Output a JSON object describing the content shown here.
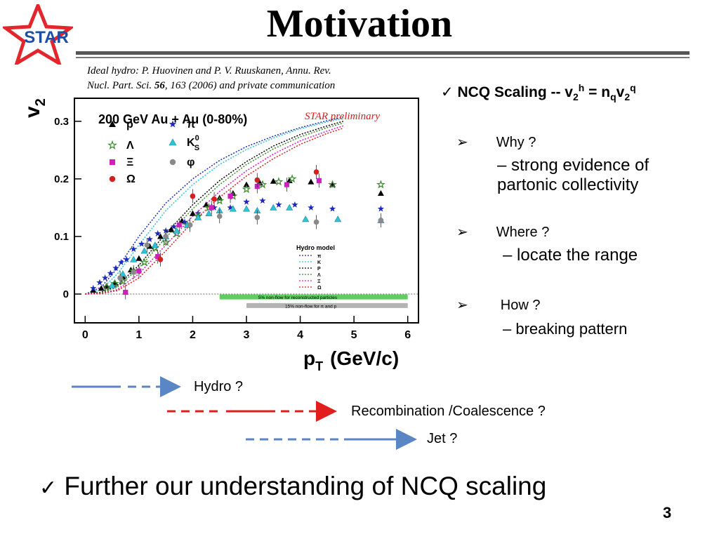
{
  "slide": {
    "title": "Motivation",
    "logo_text": "STAR",
    "citation_line1": "Ideal hydro: P. Huovinen and P. V. Ruuskanen, Annu. Rev.",
    "citation_line2_pre": "Nucl. Part. Sci. ",
    "citation_line2_vol": "56",
    "citation_line2_post": ", 163 (2006) and private communication",
    "page_number": "3",
    "check_mark": "✓",
    "bullet_arrow": "➢"
  },
  "ncq": {
    "text_pre": "NCQ Scaling -- v",
    "sub1": "2",
    "sup1": "h",
    "text_mid": " = n",
    "sub2": "q",
    "text_v": "v",
    "sub3": "2",
    "sup3": "q"
  },
  "questions": [
    {
      "q": "Why ?",
      "a": "– strong evidence of partonic collectivity"
    },
    {
      "q": "Where ?",
      "a": "– locate the range"
    },
    {
      "q": "How ?",
      "a": "– breaking pattern"
    }
  ],
  "arrows": [
    {
      "label": "Hydro ?"
    },
    {
      "label": "Recombination /Coalescence ?"
    },
    {
      "label": "Jet ?"
    }
  ],
  "further": "Further our understanding of NCQ scaling",
  "colors": {
    "blue_arrow": "#5b86c5",
    "red_arrow": "#e01e1e",
    "star_red": "#e3262c",
    "star_blue": "#1d4ea6"
  },
  "chart_data": {
    "type": "scatter",
    "title": "200 GeV Au + Au  (0-80%)",
    "annotation": "STAR preliminary",
    "xlabel": "p",
    "xlabel_sub": "T",
    "xlabel_unit": "(GeV/c)",
    "ylabel": "v",
    "ylabel_sub": "2",
    "xlim": [
      -0.2,
      6.2
    ],
    "ylim": [
      -0.05,
      0.34
    ],
    "xticks": [
      0,
      1,
      2,
      3,
      4,
      5,
      6
    ],
    "yticks": [
      0,
      0.1,
      0.2,
      0.3
    ],
    "ytick_labels": [
      "0",
      "0.1",
      "0.2",
      "0.3"
    ],
    "hydro_legend_title": "Hydro model",
    "nonflow_bands": [
      {
        "label": "5% non-flow for reconstructed particles",
        "x0": 2.5,
        "x1": 6.0,
        "y": -0.005,
        "color": "#5ccf5c"
      },
      {
        "label": "15% non-flow for π and p",
        "x0": 3.0,
        "x1": 6.0,
        "y": -0.02,
        "color": "#b3b3b3"
      }
    ],
    "series": [
      {
        "name": "p",
        "marker": "triangle",
        "color": "#000000",
        "x": [
          0.15,
          0.3,
          0.4,
          0.55,
          0.7,
          0.85,
          1.0,
          1.2,
          1.4,
          1.6,
          1.8,
          2.0,
          2.25,
          2.5,
          2.75,
          3.0,
          3.25,
          3.5,
          3.8,
          4.2,
          4.6,
          5.5
        ],
        "y": [
          0.007,
          0.01,
          0.014,
          0.02,
          0.03,
          0.042,
          0.062,
          0.083,
          0.1,
          0.112,
          0.127,
          0.14,
          0.155,
          0.167,
          0.175,
          0.19,
          0.193,
          0.196,
          0.197,
          0.195,
          0.19,
          0.175
        ]
      },
      {
        "name": "π",
        "marker": "star",
        "color": "#1d2bb8",
        "x": [
          0.15,
          0.27,
          0.37,
          0.47,
          0.57,
          0.67,
          0.77,
          0.9,
          1.05,
          1.2,
          1.35,
          1.5,
          1.65,
          1.85,
          2.1,
          2.4,
          2.7,
          3.0,
          3.3,
          3.6,
          3.9,
          4.2,
          4.6,
          5.5
        ],
        "y": [
          0.01,
          0.02,
          0.028,
          0.036,
          0.045,
          0.055,
          0.06,
          0.078,
          0.087,
          0.095,
          0.105,
          0.11,
          0.117,
          0.125,
          0.14,
          0.15,
          0.15,
          0.16,
          0.162,
          0.155,
          0.155,
          0.15,
          0.148,
          0.148
        ]
      },
      {
        "name": "Λ",
        "marker": "asterisk",
        "color": "#3a8a2e",
        "x": [
          0.4,
          0.55,
          0.7,
          0.9,
          1.1,
          1.3,
          1.5,
          1.7,
          1.9,
          2.1,
          2.3,
          2.5,
          2.75,
          3.0,
          3.3,
          3.6,
          3.85,
          4.6,
          5.5
        ],
        "y": [
          0.012,
          0.018,
          0.022,
          0.04,
          0.055,
          0.08,
          0.09,
          0.105,
          0.12,
          0.135,
          0.15,
          0.162,
          0.17,
          0.182,
          0.19,
          0.195,
          0.2,
          0.19,
          0.19
        ]
      },
      {
        "name": "K",
        "name_sup": "0",
        "name_sub": "S",
        "marker": "triangle",
        "color": "#2ec3d6",
        "x": [
          0.5,
          0.7,
          0.9,
          1.1,
          1.3,
          1.5,
          1.7,
          1.9,
          2.1,
          2.3,
          2.5,
          2.75,
          3.0,
          3.2,
          3.5,
          3.8,
          4.1,
          4.7,
          5.5
        ],
        "y": [
          0.015,
          0.035,
          0.06,
          0.075,
          0.085,
          0.1,
          0.11,
          0.12,
          0.133,
          0.14,
          0.145,
          0.148,
          0.148,
          0.145,
          0.15,
          0.15,
          0.13,
          0.13,
          0.128
        ]
      },
      {
        "name": "Ξ",
        "marker": "square",
        "color": "#d11fbf",
        "x": [
          0.75,
          1.0,
          1.35,
          1.75,
          2.35,
          2.7,
          3.2,
          3.75,
          4.35
        ],
        "y": [
          0.003,
          0.04,
          0.065,
          0.12,
          0.15,
          0.17,
          0.187,
          0.19,
          0.197
        ]
      },
      {
        "name": "Ω",
        "marker": "circle",
        "color": "#d42020",
        "x": [
          1.4,
          2.0,
          2.4,
          3.2,
          4.3
        ],
        "y": [
          0.06,
          0.17,
          0.165,
          0.198,
          0.212
        ]
      },
      {
        "name": "φ",
        "marker": "circle",
        "color": "#8a8a8a",
        "x": [
          0.65,
          0.9,
          1.15,
          1.5,
          1.95,
          2.5,
          3.2,
          4.3,
          5.5
        ],
        "y": [
          0.028,
          0.038,
          0.085,
          0.1,
          0.12,
          0.135,
          0.133,
          0.125,
          0.128
        ]
      }
    ],
    "hydro_curves": [
      {
        "name": "π",
        "style": "dotted",
        "color": "#1d2bb8",
        "x": [
          0,
          0.3,
          0.6,
          1.0,
          1.5,
          2.0,
          2.5,
          3.0,
          3.5,
          4.0,
          4.5,
          4.8
        ],
        "y": [
          0,
          0.012,
          0.045,
          0.1,
          0.158,
          0.2,
          0.232,
          0.256,
          0.274,
          0.289,
          0.301,
          0.307
        ]
      },
      {
        "name": "K",
        "style": "dotted",
        "color": "#2ec3d6",
        "x": [
          0,
          0.3,
          0.6,
          1.0,
          1.5,
          2.0,
          2.5,
          3.0,
          3.5,
          4.0,
          4.5,
          4.8
        ],
        "y": [
          0,
          0.008,
          0.035,
          0.085,
          0.145,
          0.19,
          0.225,
          0.251,
          0.271,
          0.287,
          0.299,
          0.305
        ]
      },
      {
        "name": "P",
        "style": "dotted",
        "color": "#000000",
        "x": [
          0,
          0.3,
          0.6,
          1.0,
          1.5,
          2.0,
          2.5,
          3.0,
          3.5,
          4.0,
          4.5,
          4.8
        ],
        "y": [
          0,
          0.003,
          0.015,
          0.05,
          0.105,
          0.155,
          0.197,
          0.23,
          0.257,
          0.277,
          0.292,
          0.3
        ]
      },
      {
        "name": "Λ",
        "style": "dotted",
        "color": "#3a8a2e",
        "x": [
          0,
          0.3,
          0.6,
          1.0,
          1.5,
          2.0,
          2.5,
          3.0,
          3.5,
          4.0,
          4.5,
          4.8
        ],
        "y": [
          0,
          0.002,
          0.012,
          0.045,
          0.098,
          0.148,
          0.19,
          0.225,
          0.252,
          0.273,
          0.289,
          0.297
        ]
      },
      {
        "name": "Ξ",
        "style": "dotted",
        "color": "#d11fbf",
        "x": [
          0,
          0.3,
          0.6,
          1.0,
          1.5,
          2.0,
          2.5,
          3.0,
          3.5,
          4.0,
          4.5,
          4.8
        ],
        "y": [
          0,
          0.001,
          0.008,
          0.035,
          0.085,
          0.135,
          0.178,
          0.214,
          0.243,
          0.266,
          0.283,
          0.292
        ]
      },
      {
        "name": "Ω",
        "style": "dotted",
        "color": "#d42020",
        "x": [
          0,
          0.3,
          0.6,
          1.0,
          1.5,
          2.0,
          2.5,
          3.0,
          3.5,
          4.0,
          4.5,
          4.8
        ],
        "y": [
          0,
          0.001,
          0.006,
          0.028,
          0.075,
          0.125,
          0.168,
          0.205,
          0.235,
          0.26,
          0.279,
          0.288
        ]
      }
    ]
  }
}
